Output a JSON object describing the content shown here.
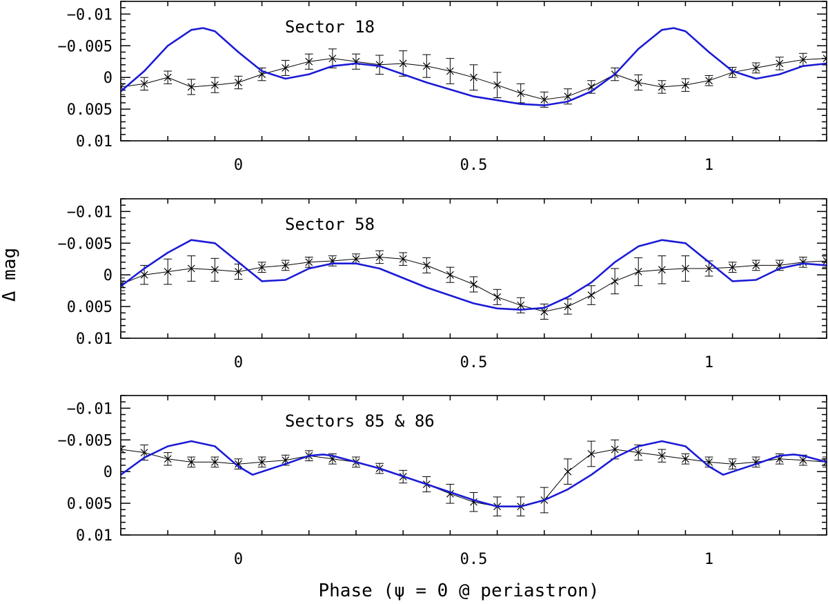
{
  "figure": {
    "xlabel": "Phase (ψ = 0 @ periastron)",
    "ylabel": "Δ mag"
  },
  "colors": {
    "model": "#1a1ad6",
    "data": "#000000",
    "axis": "#000000"
  },
  "chart_data": [
    {
      "type": "line",
      "title": "Sector 18",
      "xlim": [
        -0.25,
        1.25
      ],
      "ylim": [
        -0.012,
        0.01
      ],
      "y_inverted": true,
      "xticks": [
        0,
        0.5,
        1
      ],
      "xtick_labels": [
        "0",
        "0.5",
        "1"
      ],
      "yticks": [
        -0.01,
        -0.005,
        0,
        0.005,
        0.01
      ],
      "ytick_labels": [
        "−0.01",
        "−0.005",
        "0",
        "0.005",
        "0.01"
      ],
      "series": [
        {
          "name": "model",
          "style": "line",
          "x": [
            -0.25,
            -0.2,
            -0.15,
            -0.1,
            -0.075,
            -0.05,
            0.0,
            0.05,
            0.1,
            0.15,
            0.2,
            0.25,
            0.3,
            0.4,
            0.5,
            0.6,
            0.65,
            0.7,
            0.75,
            0.8,
            0.85,
            0.9,
            0.925,
            0.95,
            1.0,
            1.05,
            1.1,
            1.15,
            1.2,
            1.25
          ],
          "y": [
            0.0022,
            -0.001,
            -0.005,
            -0.0075,
            -0.0078,
            -0.0073,
            -0.004,
            -0.001,
            0.0002,
            -0.0005,
            -0.0018,
            -0.0022,
            -0.0018,
            0.0008,
            0.003,
            0.0042,
            0.0044,
            0.0038,
            0.0022,
            -0.0005,
            -0.0045,
            -0.0075,
            -0.0078,
            -0.0073,
            -0.004,
            -0.001,
            0.0002,
            -0.0005,
            -0.0018,
            -0.0022
          ]
        },
        {
          "name": "data",
          "style": "errorbar",
          "x": [
            -0.25,
            -0.2,
            -0.15,
            -0.1,
            -0.05,
            0.0,
            0.05,
            0.1,
            0.15,
            0.2,
            0.25,
            0.3,
            0.35,
            0.4,
            0.45,
            0.5,
            0.55,
            0.6,
            0.65,
            0.7,
            0.75,
            0.8,
            0.85,
            0.9,
            0.95,
            1.0,
            1.05,
            1.1,
            1.15,
            1.2,
            1.25
          ],
          "y": [
            0.0015,
            0.001,
            0.0,
            0.0015,
            0.0012,
            0.0008,
            -0.0005,
            -0.0015,
            -0.0025,
            -0.003,
            -0.0025,
            -0.002,
            -0.0022,
            -0.0018,
            -0.001,
            0.0,
            0.0012,
            0.0025,
            0.0035,
            0.003,
            0.0015,
            -0.0005,
            0.0008,
            0.0015,
            0.0012,
            0.0005,
            -0.0008,
            -0.0015,
            -0.0022,
            -0.0028,
            -0.003
          ],
          "err": [
            0.0012,
            0.001,
            0.001,
            0.0012,
            0.0012,
            0.001,
            0.001,
            0.0012,
            0.0012,
            0.0015,
            0.0012,
            0.0015,
            0.002,
            0.0018,
            0.002,
            0.002,
            0.002,
            0.0015,
            0.0012,
            0.0012,
            0.001,
            0.001,
            0.0012,
            0.001,
            0.001,
            0.0008,
            0.0008,
            0.0008,
            0.001,
            0.001,
            0.001
          ]
        }
      ]
    },
    {
      "type": "line",
      "title": "Sector 58",
      "xlim": [
        -0.25,
        1.25
      ],
      "ylim": [
        -0.012,
        0.01
      ],
      "y_inverted": true,
      "xticks": [
        0,
        0.5,
        1
      ],
      "xtick_labels": [
        "0",
        "0.5",
        "1"
      ],
      "yticks": [
        -0.01,
        -0.005,
        0,
        0.005,
        0.01
      ],
      "ytick_labels": [
        "−0.01",
        "−0.005",
        "0",
        "0.005",
        "0.01"
      ],
      "series": [
        {
          "name": "model",
          "style": "line",
          "x": [
            -0.25,
            -0.2,
            -0.15,
            -0.1,
            -0.05,
            0.0,
            0.05,
            0.1,
            0.15,
            0.2,
            0.25,
            0.3,
            0.4,
            0.5,
            0.55,
            0.6,
            0.65,
            0.7,
            0.75,
            0.8,
            0.85,
            0.9,
            0.95,
            1.0,
            1.05,
            1.1,
            1.15,
            1.2,
            1.25
          ],
          "y": [
            0.0018,
            -0.001,
            -0.0035,
            -0.0055,
            -0.005,
            -0.002,
            0.001,
            0.0008,
            -0.001,
            -0.0018,
            -0.0018,
            -0.001,
            0.002,
            0.0045,
            0.0053,
            0.0055,
            0.0052,
            0.0035,
            0.0012,
            -0.002,
            -0.0045,
            -0.0055,
            -0.005,
            -0.002,
            0.001,
            0.0008,
            -0.001,
            -0.0018,
            -0.0015
          ]
        },
        {
          "name": "data",
          "style": "errorbar",
          "x": [
            -0.25,
            -0.2,
            -0.15,
            -0.1,
            -0.05,
            0.0,
            0.05,
            0.1,
            0.15,
            0.2,
            0.25,
            0.3,
            0.35,
            0.4,
            0.45,
            0.5,
            0.55,
            0.6,
            0.65,
            0.7,
            0.75,
            0.8,
            0.85,
            0.9,
            0.95,
            1.0,
            1.05,
            1.1,
            1.15,
            1.2,
            1.25
          ],
          "y": [
            0.0015,
            0.0,
            -0.0005,
            -0.001,
            -0.0008,
            -0.0005,
            -0.0012,
            -0.0015,
            -0.002,
            -0.0022,
            -0.0025,
            -0.0028,
            -0.0025,
            -0.0015,
            0.0,
            0.0015,
            0.0035,
            0.0048,
            0.0058,
            0.005,
            0.0032,
            0.001,
            -0.0005,
            -0.0008,
            -0.001,
            -0.001,
            -0.0012,
            -0.0015,
            -0.0015,
            -0.002,
            -0.0022
          ],
          "err": [
            0.001,
            0.0015,
            0.002,
            0.002,
            0.0018,
            0.0012,
            0.0008,
            0.0008,
            0.0008,
            0.0008,
            0.0008,
            0.001,
            0.001,
            0.0012,
            0.0012,
            0.0012,
            0.0012,
            0.0012,
            0.0012,
            0.0012,
            0.0015,
            0.002,
            0.0022,
            0.0022,
            0.002,
            0.0012,
            0.0008,
            0.0008,
            0.0008,
            0.0008,
            0.001
          ]
        }
      ]
    },
    {
      "type": "line",
      "title": "Sectors 85 & 86",
      "xlim": [
        -0.25,
        1.25
      ],
      "ylim": [
        -0.012,
        0.01
      ],
      "y_inverted": true,
      "xticks": [
        0,
        0.5,
        1
      ],
      "xtick_labels": [
        "0",
        "0.5",
        "1"
      ],
      "yticks": [
        -0.01,
        -0.005,
        0,
        0.005,
        0.01
      ],
      "ytick_labels": [
        "−0.01",
        "−0.005",
        "0",
        "0.005",
        "0.01"
      ],
      "series": [
        {
          "name": "model",
          "style": "line",
          "x": [
            -0.25,
            -0.2,
            -0.15,
            -0.1,
            -0.05,
            0.0,
            0.03,
            0.1,
            0.15,
            0.18,
            0.2,
            0.25,
            0.3,
            0.4,
            0.5,
            0.55,
            0.6,
            0.65,
            0.7,
            0.75,
            0.8,
            0.85,
            0.9,
            0.95,
            1.0,
            1.03,
            1.1,
            1.15,
            1.18,
            1.2,
            1.25
          ],
          "y": [
            0.0005,
            -0.0022,
            -0.004,
            -0.0048,
            -0.004,
            -0.0008,
            0.0005,
            -0.0012,
            -0.0025,
            -0.0027,
            -0.0025,
            -0.0015,
            -0.0005,
            0.002,
            0.0045,
            0.0055,
            0.0055,
            0.0045,
            0.0028,
            0.0005,
            -0.0022,
            -0.004,
            -0.0048,
            -0.004,
            -0.0008,
            0.0005,
            -0.0012,
            -0.0025,
            -0.0027,
            -0.0025,
            -0.0015
          ]
        },
        {
          "name": "data",
          "style": "errorbar",
          "x": [
            -0.25,
            -0.2,
            -0.15,
            -0.1,
            -0.05,
            0.0,
            0.05,
            0.1,
            0.15,
            0.2,
            0.25,
            0.3,
            0.35,
            0.4,
            0.45,
            0.5,
            0.55,
            0.6,
            0.65,
            0.7,
            0.75,
            0.8,
            0.85,
            0.9,
            0.95,
            1.0,
            1.05,
            1.1,
            1.15,
            1.2,
            1.25
          ],
          "y": [
            -0.0035,
            -0.003,
            -0.002,
            -0.0015,
            -0.0015,
            -0.0012,
            -0.0015,
            -0.0018,
            -0.0025,
            -0.002,
            -0.0015,
            -0.0005,
            0.0008,
            0.002,
            0.0035,
            0.0048,
            0.0055,
            0.0055,
            0.0045,
            0.0,
            -0.0028,
            -0.0035,
            -0.003,
            -0.0025,
            -0.002,
            -0.0015,
            -0.0012,
            -0.0015,
            -0.002,
            -0.0018,
            -0.0015
          ],
          "err": [
            0.0015,
            0.0012,
            0.001,
            0.0008,
            0.0008,
            0.0008,
            0.0008,
            0.0008,
            0.0008,
            0.0008,
            0.0008,
            0.0008,
            0.001,
            0.0012,
            0.0015,
            0.0015,
            0.0015,
            0.0015,
            0.002,
            0.002,
            0.002,
            0.0015,
            0.0012,
            0.001,
            0.0008,
            0.0008,
            0.0008,
            0.0008,
            0.0008,
            0.0008,
            0.0008
          ]
        }
      ]
    }
  ]
}
